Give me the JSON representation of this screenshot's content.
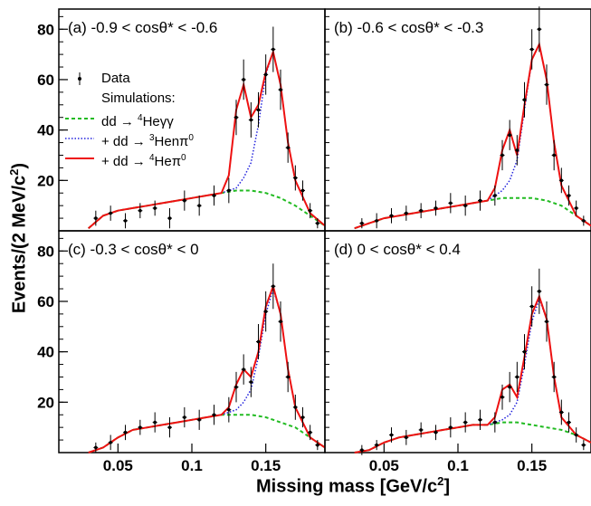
{
  "figure": {
    "y_axis_label": "Events/(2 MeV/c",
    "y_axis_label_sup": "2",
    "x_axis_label": "Missing mass [GeV/c",
    "x_axis_label_sup": "2",
    "x_axis_label_end": "]"
  },
  "legend": {
    "data_label": "Data",
    "sim_header": "Simulations:",
    "entries": [
      {
        "prefix": "dd → ",
        "sup": "4",
        "suffix": "Heγγ",
        "style": "dashed",
        "color": "#22bb22"
      },
      {
        "prefix": "+ dd → ",
        "sup": "3",
        "suffix": "Henπ",
        "sup2": "0",
        "style": "dotted",
        "color": "#2222dd"
      },
      {
        "prefix": "+ dd → ",
        "sup": "4",
        "suffix": "Heπ",
        "sup2": "0",
        "style": "solid",
        "color": "#ee1111"
      }
    ]
  },
  "colors": {
    "data": "#000000",
    "he4gg": "#22bb22",
    "he3npi": "#2222dd",
    "he4pi": "#ee1111",
    "frame": "#000000"
  },
  "chart_data": [
    {
      "type": "line",
      "panel_label": "(a) -0.9 < cosθ* < -0.6",
      "xlim": [
        0.01,
        0.19
      ],
      "ylim": [
        0,
        88
      ],
      "xticks": [],
      "yticks": [
        20,
        40,
        60,
        80
      ],
      "series": [
        {
          "key": "he4gg",
          "x": [
            0.03,
            0.04,
            0.05,
            0.06,
            0.07,
            0.08,
            0.09,
            0.1,
            0.11,
            0.12,
            0.13,
            0.14,
            0.15,
            0.16,
            0.17,
            0.18,
            0.19
          ],
          "values": [
            1,
            6,
            8,
            9,
            10,
            11,
            12,
            13,
            14,
            15,
            16,
            16,
            15,
            13,
            10,
            6,
            2
          ]
        },
        {
          "key": "he3npi",
          "x": [
            0.03,
            0.04,
            0.05,
            0.06,
            0.07,
            0.08,
            0.09,
            0.1,
            0.11,
            0.12,
            0.125,
            0.13,
            0.135,
            0.14,
            0.145,
            0.15,
            0.155,
            0.16,
            0.165,
            0.17,
            0.18,
            0.19
          ],
          "values": [
            1,
            6,
            8,
            9,
            10,
            11,
            12,
            13,
            14,
            15,
            16,
            17,
            21,
            27,
            42,
            62,
            71,
            58,
            35,
            20,
            7,
            2
          ]
        },
        {
          "key": "he4pi",
          "x": [
            0.03,
            0.04,
            0.05,
            0.06,
            0.07,
            0.08,
            0.09,
            0.1,
            0.11,
            0.12,
            0.125,
            0.13,
            0.135,
            0.14,
            0.145,
            0.15,
            0.155,
            0.16,
            0.165,
            0.17,
            0.18,
            0.19
          ],
          "values": [
            1,
            6,
            8,
            9,
            10,
            11,
            12,
            13,
            14,
            15,
            22,
            48,
            58,
            45,
            50,
            63,
            71,
            58,
            35,
            20,
            7,
            2
          ]
        },
        {
          "key": "data",
          "x": [
            0.035,
            0.045,
            0.055,
            0.065,
            0.075,
            0.085,
            0.095,
            0.105,
            0.115,
            0.125,
            0.13,
            0.135,
            0.14,
            0.145,
            0.15,
            0.155,
            0.16,
            0.165,
            0.17,
            0.175,
            0.18,
            0.185
          ],
          "values": [
            5,
            7,
            4,
            8,
            9,
            5,
            12,
            10,
            14,
            16,
            45,
            60,
            44,
            48,
            62,
            72,
            56,
            33,
            21,
            16,
            8,
            3
          ],
          "errors": [
            3,
            3,
            3,
            3,
            3,
            4,
            4,
            4,
            4,
            5,
            7,
            8,
            7,
            7,
            8,
            9,
            8,
            6,
            5,
            4,
            3,
            2
          ]
        }
      ]
    },
    {
      "type": "line",
      "panel_label": "(b) -0.6 < cosθ* < -0.3",
      "xlim": [
        0.01,
        0.19
      ],
      "ylim": [
        0,
        88
      ],
      "xticks": [],
      "yticks": [],
      "series": [
        {
          "key": "he4gg",
          "x": [
            0.03,
            0.04,
            0.05,
            0.06,
            0.07,
            0.08,
            0.09,
            0.1,
            0.11,
            0.12,
            0.13,
            0.14,
            0.15,
            0.16,
            0.17,
            0.18,
            0.19
          ],
          "values": [
            1,
            3,
            5,
            6,
            7,
            8,
            9,
            10,
            11,
            12,
            13,
            13,
            13,
            12,
            10,
            6,
            2
          ]
        },
        {
          "key": "he3npi",
          "x": [
            0.03,
            0.04,
            0.05,
            0.06,
            0.07,
            0.08,
            0.09,
            0.1,
            0.11,
            0.12,
            0.125,
            0.13,
            0.135,
            0.14,
            0.145,
            0.15,
            0.155,
            0.16,
            0.165,
            0.17,
            0.18,
            0.19
          ],
          "values": [
            1,
            3,
            5,
            6,
            7,
            8,
            9,
            10,
            11,
            12,
            14,
            16,
            20,
            28,
            48,
            68,
            74,
            60,
            35,
            18,
            6,
            2
          ]
        },
        {
          "key": "he4pi",
          "x": [
            0.03,
            0.04,
            0.05,
            0.06,
            0.07,
            0.08,
            0.09,
            0.1,
            0.11,
            0.12,
            0.125,
            0.13,
            0.135,
            0.14,
            0.145,
            0.15,
            0.155,
            0.16,
            0.165,
            0.17,
            0.18,
            0.19
          ],
          "values": [
            1,
            3,
            5,
            6,
            7,
            8,
            9,
            10,
            11,
            12,
            17,
            32,
            40,
            30,
            50,
            68,
            74,
            60,
            35,
            18,
            6,
            2
          ]
        },
        {
          "key": "data",
          "x": [
            0.035,
            0.045,
            0.055,
            0.065,
            0.075,
            0.085,
            0.095,
            0.105,
            0.115,
            0.125,
            0.13,
            0.135,
            0.14,
            0.145,
            0.15,
            0.155,
            0.16,
            0.165,
            0.17,
            0.175,
            0.18,
            0.185
          ],
          "values": [
            3,
            4,
            6,
            7,
            8,
            9,
            11,
            10,
            12,
            14,
            30,
            38,
            32,
            52,
            72,
            80,
            58,
            30,
            20,
            14,
            9,
            4
          ],
          "errors": [
            2,
            3,
            3,
            3,
            3,
            3,
            4,
            4,
            4,
            4,
            6,
            6,
            6,
            7,
            8,
            9,
            8,
            6,
            5,
            4,
            3,
            2
          ]
        }
      ]
    },
    {
      "type": "line",
      "panel_label": "(c) -0.3 < cosθ* < 0",
      "xlim": [
        0.01,
        0.19
      ],
      "ylim": [
        0,
        88
      ],
      "xticks": [
        0.05,
        0.1,
        0.15
      ],
      "yticks": [
        20,
        40,
        60,
        80
      ],
      "series": [
        {
          "key": "he4gg",
          "x": [
            0.03,
            0.04,
            0.05,
            0.06,
            0.07,
            0.08,
            0.09,
            0.1,
            0.11,
            0.12,
            0.13,
            0.14,
            0.15,
            0.16,
            0.17,
            0.18,
            0.19
          ],
          "values": [
            0,
            2,
            6,
            9,
            10,
            11,
            12,
            13,
            14,
            15,
            15,
            15,
            14,
            12,
            10,
            6,
            2
          ]
        },
        {
          "key": "he3npi",
          "x": [
            0.03,
            0.04,
            0.05,
            0.06,
            0.07,
            0.08,
            0.09,
            0.1,
            0.11,
            0.12,
            0.125,
            0.13,
            0.135,
            0.14,
            0.145,
            0.15,
            0.155,
            0.16,
            0.165,
            0.17,
            0.18,
            0.19
          ],
          "values": [
            0,
            2,
            6,
            9,
            10,
            11,
            12,
            13,
            14,
            15,
            16,
            17,
            20,
            25,
            38,
            55,
            65,
            55,
            33,
            18,
            6,
            2
          ]
        },
        {
          "key": "he4pi",
          "x": [
            0.03,
            0.04,
            0.05,
            0.06,
            0.07,
            0.08,
            0.09,
            0.1,
            0.11,
            0.12,
            0.125,
            0.13,
            0.135,
            0.14,
            0.145,
            0.15,
            0.155,
            0.16,
            0.165,
            0.17,
            0.18,
            0.19
          ],
          "values": [
            0,
            2,
            6,
            9,
            10,
            11,
            12,
            13,
            14,
            15,
            18,
            27,
            33,
            30,
            40,
            58,
            66,
            55,
            33,
            18,
            6,
            2
          ]
        },
        {
          "key": "data",
          "x": [
            0.035,
            0.045,
            0.055,
            0.065,
            0.075,
            0.085,
            0.095,
            0.105,
            0.115,
            0.125,
            0.13,
            0.135,
            0.14,
            0.145,
            0.15,
            0.155,
            0.16,
            0.165,
            0.17,
            0.175,
            0.18,
            0.185
          ],
          "values": [
            2,
            4,
            8,
            10,
            12,
            10,
            14,
            13,
            15,
            17,
            26,
            33,
            28,
            44,
            56,
            66,
            52,
            30,
            18,
            14,
            8,
            3
          ],
          "errors": [
            2,
            3,
            3,
            3,
            4,
            4,
            4,
            4,
            4,
            5,
            6,
            6,
            6,
            7,
            8,
            9,
            8,
            6,
            5,
            4,
            3,
            2
          ]
        }
      ]
    },
    {
      "type": "line",
      "panel_label": "(d) 0 < cosθ* < 0.4",
      "xlim": [
        0.01,
        0.19
      ],
      "ylim": [
        0,
        88
      ],
      "xticks": [
        0.05,
        0.1,
        0.15
      ],
      "yticks": [],
      "series": [
        {
          "key": "he4gg",
          "x": [
            0.03,
            0.04,
            0.05,
            0.06,
            0.07,
            0.08,
            0.09,
            0.1,
            0.11,
            0.12,
            0.13,
            0.14,
            0.15,
            0.16,
            0.17,
            0.18,
            0.19
          ],
          "values": [
            0,
            1,
            4,
            6,
            7,
            8,
            9,
            10,
            11,
            11,
            12,
            12,
            11,
            10,
            9,
            7,
            4
          ]
        },
        {
          "key": "he3npi",
          "x": [
            0.03,
            0.04,
            0.05,
            0.06,
            0.07,
            0.08,
            0.09,
            0.1,
            0.11,
            0.12,
            0.125,
            0.13,
            0.135,
            0.14,
            0.145,
            0.15,
            0.155,
            0.16,
            0.165,
            0.17,
            0.18,
            0.19
          ],
          "values": [
            0,
            1,
            4,
            6,
            7,
            8,
            9,
            10,
            11,
            11,
            12,
            13,
            15,
            20,
            35,
            52,
            61,
            53,
            30,
            14,
            7,
            4
          ]
        },
        {
          "key": "he4pi",
          "x": [
            0.03,
            0.04,
            0.05,
            0.06,
            0.07,
            0.08,
            0.09,
            0.1,
            0.11,
            0.12,
            0.125,
            0.13,
            0.135,
            0.14,
            0.145,
            0.15,
            0.155,
            0.16,
            0.165,
            0.17,
            0.18,
            0.19
          ],
          "values": [
            0,
            1,
            4,
            6,
            7,
            8,
            9,
            10,
            11,
            11,
            14,
            25,
            27,
            22,
            38,
            55,
            62,
            53,
            30,
            14,
            7,
            4
          ]
        },
        {
          "key": "data",
          "x": [
            0.035,
            0.045,
            0.055,
            0.065,
            0.075,
            0.085,
            0.095,
            0.105,
            0.115,
            0.125,
            0.13,
            0.135,
            0.14,
            0.145,
            0.15,
            0.155,
            0.16,
            0.165,
            0.17,
            0.175,
            0.18,
            0.185
          ],
          "values": [
            1,
            3,
            7,
            6,
            9,
            8,
            10,
            12,
            13,
            12,
            22,
            26,
            30,
            40,
            58,
            64,
            52,
            30,
            16,
            12,
            7,
            3
          ],
          "errors": [
            2,
            2,
            3,
            3,
            3,
            3,
            4,
            4,
            4,
            4,
            5,
            6,
            6,
            7,
            8,
            9,
            8,
            6,
            5,
            4,
            3,
            2
          ]
        }
      ]
    }
  ]
}
